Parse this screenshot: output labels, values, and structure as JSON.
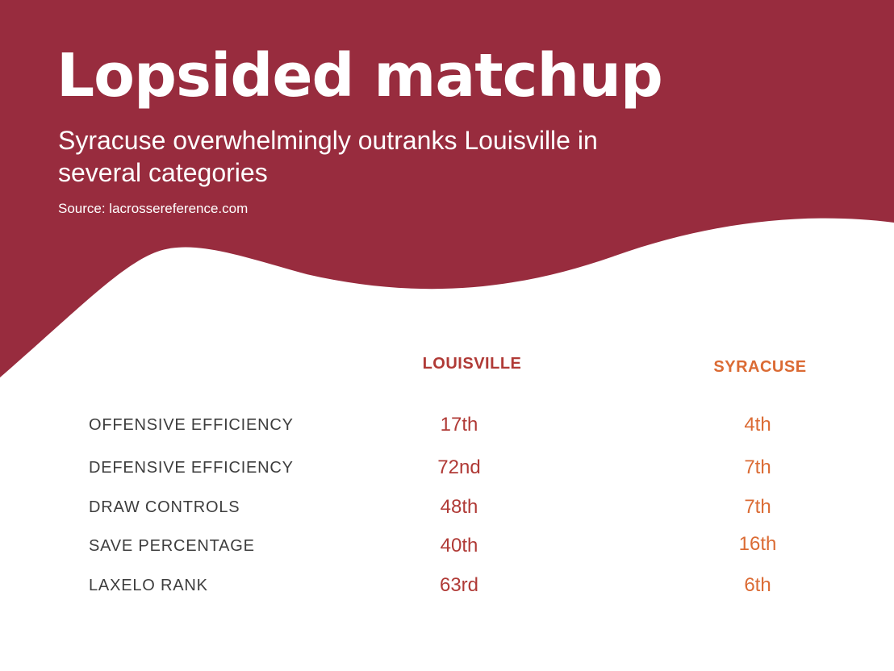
{
  "colors": {
    "banner": "#982c3e",
    "louisville": "#b03a36",
    "syracuse": "#db6b34",
    "label": "#3d3d3d"
  },
  "header": {
    "title": "Lopsided matchup",
    "subtitle": "Syracuse overwhelmingly outranks Louisville in several categories",
    "source": "Source: lacrossereference.com"
  },
  "table": {
    "columns": [
      "LOUISVILLE",
      "SYRACUSE"
    ],
    "rows": [
      {
        "label": "OFFENSIVE EFFICIENCY",
        "louisville": "17th",
        "syracuse": "4th"
      },
      {
        "label": "DEFENSIVE EFFICIENCY",
        "louisville": "72nd",
        "syracuse": "7th"
      },
      {
        "label": "DRAW CONTROLS",
        "louisville": "48th",
        "syracuse": "7th"
      },
      {
        "label": "SAVE PERCENTAGE",
        "louisville": "40th",
        "syracuse": "16th"
      },
      {
        "label": "LAXELO RANK",
        "louisville": "63rd",
        "syracuse": "6th"
      }
    ]
  }
}
